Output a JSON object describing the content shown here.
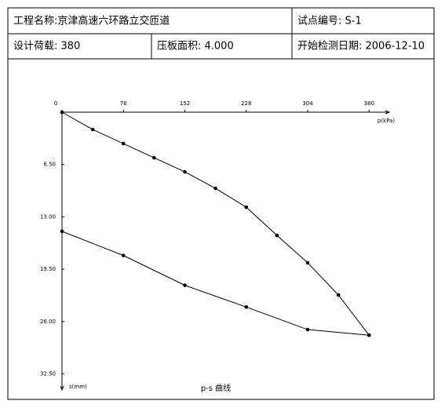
{
  "header": {
    "rows": [
      [
        "工程名称:京津高速六环路立交匝道",
        "试点编号: S-1"
      ],
      [
        "设计荷载: 380",
        "压板面积: 4.000",
        "开始检测日期: 2006-12-10"
      ]
    ]
  },
  "chart_data": {
    "type": "line",
    "title": "p-s 曲线",
    "x_label": "p(kPa)",
    "y_label": "s(mm)",
    "xlim": [
      0,
      405
    ],
    "xticks": [
      0,
      76,
      152,
      228,
      304,
      380
    ],
    "ylim": [
      0,
      34.5
    ],
    "yticks": [
      0,
      {
        "value": 6.5,
        "label": "6.50"
      },
      {
        "value": 13,
        "label": "13.00"
      },
      {
        "value": 19.5,
        "label": "19.50"
      },
      {
        "value": 26,
        "label": "26.00"
      },
      {
        "value": 32.5,
        "label": "32.50"
      }
    ],
    "y_inverted": true,
    "color": "#000000",
    "series": [
      {
        "x": [
          0,
          38,
          76,
          114,
          152,
          190,
          228,
          266,
          304,
          342,
          380
        ],
        "values": [
          0,
          2.15,
          3.9,
          5.66,
          7.41,
          9.46,
          11.8,
          15.3,
          18.7,
          22.7,
          27.7
        ]
      },
      {
        "x": [
          380,
          304,
          228,
          152,
          76,
          0
        ],
        "values": [
          27.7,
          27.0,
          24.2,
          21.5,
          17.8,
          14.8
        ]
      }
    ]
  }
}
